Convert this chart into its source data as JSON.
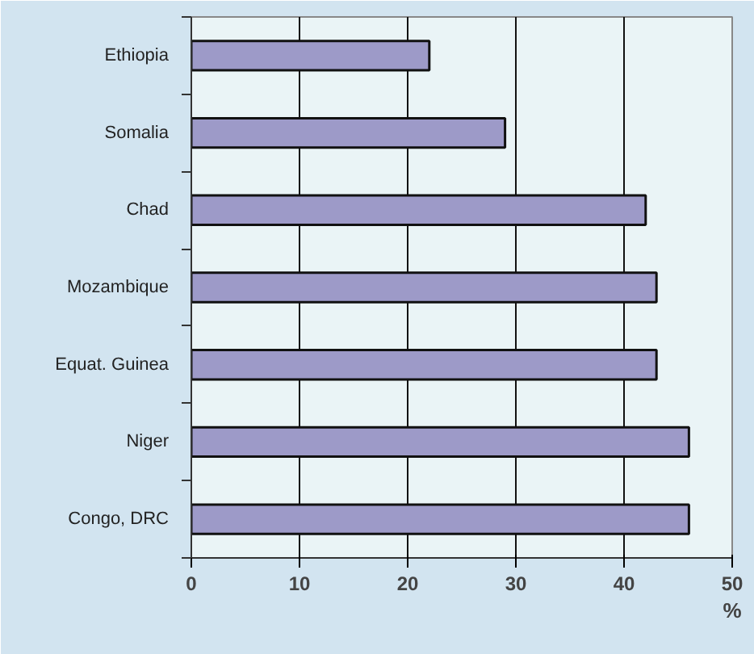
{
  "chart_data": {
    "type": "bar",
    "orientation": "horizontal",
    "xlabel": "%",
    "categories": [
      "Ethiopia",
      "Somalia",
      "Chad",
      "Mozambique",
      "Equat. Guinea",
      "Niger",
      "Congo, DRC"
    ],
    "values": [
      22,
      29,
      42,
      43,
      43,
      46,
      46
    ],
    "color": "#9d9ac8",
    "xlim": [
      0,
      50
    ],
    "xticks": [
      0,
      10,
      20,
      30,
      40,
      50
    ],
    "grid": "x"
  }
}
